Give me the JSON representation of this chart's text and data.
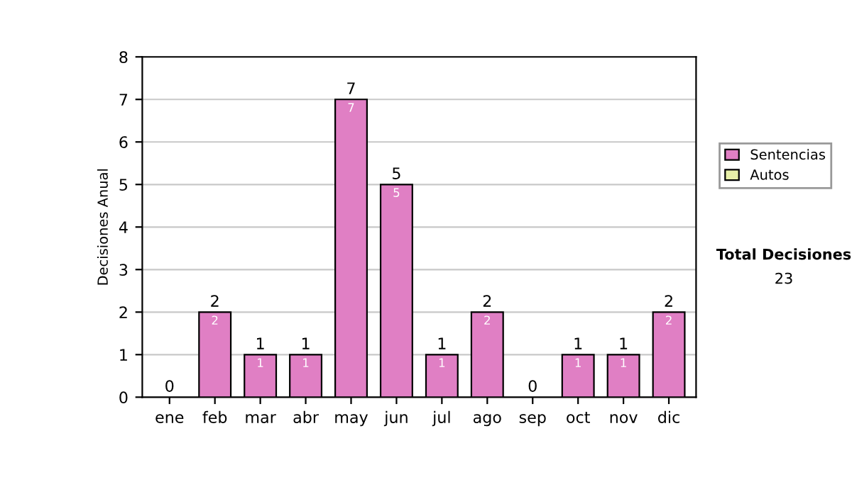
{
  "chart_data": {
    "type": "bar",
    "ylabel": "Decisiones Anual",
    "categories": [
      "ene",
      "feb",
      "mar",
      "abr",
      "may",
      "jun",
      "jul",
      "ago",
      "sep",
      "oct",
      "nov",
      "dic"
    ],
    "series": [
      {
        "name": "Sentencias",
        "color": "#e07fc4",
        "values": [
          0,
          2,
          1,
          1,
          7,
          5,
          1,
          2,
          0,
          1,
          1,
          2
        ],
        "value_labels": [
          null,
          "2",
          "1",
          "1",
          "7",
          "5",
          "1",
          "2",
          null,
          "1",
          "1",
          "2"
        ]
      },
      {
        "name": "Autos",
        "color": "#e8f0a8",
        "values": [
          0,
          0,
          0,
          0,
          0,
          0,
          0,
          0,
          0,
          0,
          0,
          0
        ]
      }
    ],
    "stacked": true,
    "totals": [
      "0",
      "2",
      "1",
      "1",
      "7",
      "5",
      "1",
      "2",
      "0",
      "1",
      "1",
      "2"
    ],
    "ylim": [
      0,
      8
    ],
    "yticks": [
      0,
      1,
      2,
      3,
      4,
      5,
      6,
      7,
      8
    ],
    "grid": "y",
    "legend": "right",
    "annotations": [
      "Total Decisiones",
      "23"
    ]
  }
}
